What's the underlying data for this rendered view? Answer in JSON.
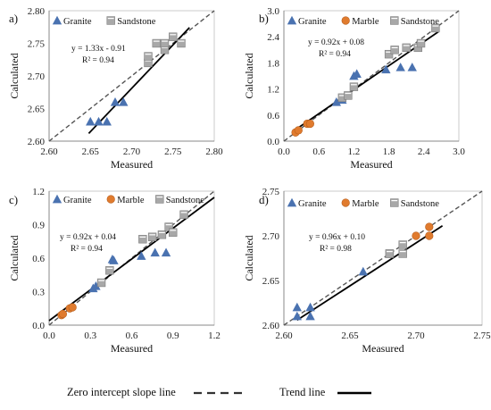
{
  "chart_data": [
    {
      "panel": "a)",
      "type": "scatter",
      "xlabel": "Measured",
      "ylabel": "Calculated",
      "xlim": [
        2.6,
        2.8
      ],
      "ylim": [
        2.6,
        2.8
      ],
      "xticks": [
        2.6,
        2.65,
        2.7,
        2.75,
        2.8
      ],
      "yticks": [
        2.6,
        2.65,
        2.7,
        2.75,
        2.8
      ],
      "tick_decimals": 2,
      "legend": [
        "Granite",
        "Sandstone"
      ],
      "equation": "y = 1.33x - 0.91",
      "r2": "R² = 0.94",
      "trend": {
        "slope": 1.33,
        "intercept": -0.91,
        "x_range": [
          2.648,
          2.77
        ]
      },
      "series": [
        {
          "name": "Granite",
          "marker": "triangle",
          "points": [
            [
              2.65,
              2.63
            ],
            [
              2.66,
              2.63
            ],
            [
              2.67,
              2.63
            ],
            [
              2.68,
              2.66
            ],
            [
              2.69,
              2.66
            ]
          ]
        },
        {
          "name": "Sandstone",
          "marker": "square",
          "points": [
            [
              2.72,
              2.72
            ],
            [
              2.72,
              2.73
            ],
            [
              2.73,
              2.75
            ],
            [
              2.74,
              2.74
            ],
            [
              2.74,
              2.75
            ],
            [
              2.75,
              2.76
            ],
            [
              2.76,
              2.75
            ]
          ]
        }
      ]
    },
    {
      "panel": "b)",
      "type": "scatter",
      "xlabel": "Measured",
      "ylabel": "Calculated",
      "xlim": [
        0.0,
        3.0
      ],
      "ylim": [
        0.0,
        3.0
      ],
      "xticks": [
        0.0,
        0.6,
        1.2,
        1.8,
        2.4,
        3.0
      ],
      "yticks": [
        0.0,
        0.6,
        1.2,
        1.8,
        2.4,
        3.0
      ],
      "tick_decimals": 1,
      "legend": [
        "Granite",
        "Marble",
        "Sandstone"
      ],
      "equation": "y = 0.92x + 0.08",
      "r2": "R² = 0.94",
      "trend": {
        "slope": 0.92,
        "intercept": 0.08,
        "x_range": [
          0.2,
          2.65
        ]
      },
      "series": [
        {
          "name": "Granite",
          "marker": "triangle",
          "points": [
            [
              0.9,
              0.9
            ],
            [
              1.0,
              0.95
            ],
            [
              1.2,
              1.5
            ],
            [
              1.25,
              1.55
            ],
            [
              1.75,
              1.65
            ],
            [
              2.0,
              1.7
            ],
            [
              2.2,
              1.7
            ]
          ]
        },
        {
          "name": "Marble",
          "marker": "circle",
          "points": [
            [
              0.2,
              0.2
            ],
            [
              0.25,
              0.25
            ],
            [
              0.4,
              0.4
            ],
            [
              0.45,
              0.4
            ]
          ]
        },
        {
          "name": "Sandstone",
          "marker": "square",
          "points": [
            [
              1.0,
              1.0
            ],
            [
              1.1,
              1.05
            ],
            [
              1.2,
              1.25
            ],
            [
              1.8,
              2.0
            ],
            [
              1.9,
              2.1
            ],
            [
              2.1,
              2.15
            ],
            [
              2.3,
              2.15
            ],
            [
              2.35,
              2.25
            ],
            [
              2.6,
              2.6
            ]
          ]
        }
      ]
    },
    {
      "panel": "c)",
      "type": "scatter",
      "xlabel": "Measured",
      "ylabel": "Calculated",
      "xlim": [
        0.0,
        1.2
      ],
      "ylim": [
        0.0,
        1.2
      ],
      "xticks": [
        0.0,
        0.3,
        0.6,
        0.9,
        1.2
      ],
      "yticks": [
        0.0,
        0.3,
        0.6,
        0.9,
        1.2
      ],
      "tick_decimals": 1,
      "legend": [
        "Granite",
        "Marble",
        "Sandstone"
      ],
      "equation": "y = 0.92x + 0.04",
      "r2": "R² = 0.94",
      "trend": {
        "slope": 0.92,
        "intercept": 0.04,
        "x_range": [
          0.0,
          1.2
        ]
      },
      "series": [
        {
          "name": "Granite",
          "marker": "triangle",
          "points": [
            [
              0.32,
              0.33
            ],
            [
              0.34,
              0.35
            ],
            [
              0.46,
              0.59
            ],
            [
              0.47,
              0.58
            ],
            [
              0.67,
              0.62
            ],
            [
              0.77,
              0.65
            ],
            [
              0.85,
              0.65
            ]
          ]
        },
        {
          "name": "Marble",
          "marker": "circle",
          "points": [
            [
              0.09,
              0.09
            ],
            [
              0.1,
              0.1
            ],
            [
              0.15,
              0.15
            ],
            [
              0.17,
              0.16
            ]
          ]
        },
        {
          "name": "Sandstone",
          "marker": "square",
          "points": [
            [
              0.38,
              0.38
            ],
            [
              0.44,
              0.49
            ],
            [
              0.68,
              0.77
            ],
            [
              0.75,
              0.79
            ],
            [
              0.82,
              0.81
            ],
            [
              0.87,
              0.88
            ],
            [
              0.9,
              0.83
            ],
            [
              0.98,
              0.99
            ]
          ]
        }
      ]
    },
    {
      "panel": "d)",
      "type": "scatter",
      "xlabel": "Measured",
      "ylabel": "Calculated",
      "xlim": [
        2.6,
        2.75
      ],
      "ylim": [
        2.6,
        2.75
      ],
      "xticks": [
        2.6,
        2.65,
        2.7,
        2.75
      ],
      "yticks": [
        2.6,
        2.65,
        2.7,
        2.75
      ],
      "tick_decimals": 2,
      "legend": [
        "Granite",
        "Marble",
        "Sandstone"
      ],
      "equation": "y = 0.96x + 0.10",
      "r2": "R² = 0.98",
      "trend": {
        "slope": 0.96,
        "intercept": 0.1,
        "x_range": [
          2.61,
          2.72
        ]
      },
      "series": [
        {
          "name": "Granite",
          "marker": "triangle",
          "points": [
            [
              2.61,
              2.61
            ],
            [
              2.61,
              2.62
            ],
            [
              2.62,
              2.61
            ],
            [
              2.62,
              2.62
            ],
            [
              2.66,
              2.66
            ]
          ]
        },
        {
          "name": "Marble",
          "marker": "circle",
          "points": [
            [
              2.7,
              2.7
            ],
            [
              2.71,
              2.7
            ],
            [
              2.71,
              2.71
            ]
          ]
        },
        {
          "name": "Sandstone",
          "marker": "square",
          "points": [
            [
              2.68,
              2.68
            ],
            [
              2.69,
              2.68
            ],
            [
              2.69,
              2.69
            ],
            [
              2.68,
              2.68
            ]
          ]
        }
      ]
    }
  ],
  "footer": {
    "zero_intercept_label": "Zero intercept slope line",
    "trend_label": "Trend line"
  },
  "colors": {
    "Granite": "#4a72b0",
    "Marble": "#e07b2e",
    "Sandstone": "#a8a8a8",
    "trend": "#000000",
    "zero_line": "#555555"
  }
}
